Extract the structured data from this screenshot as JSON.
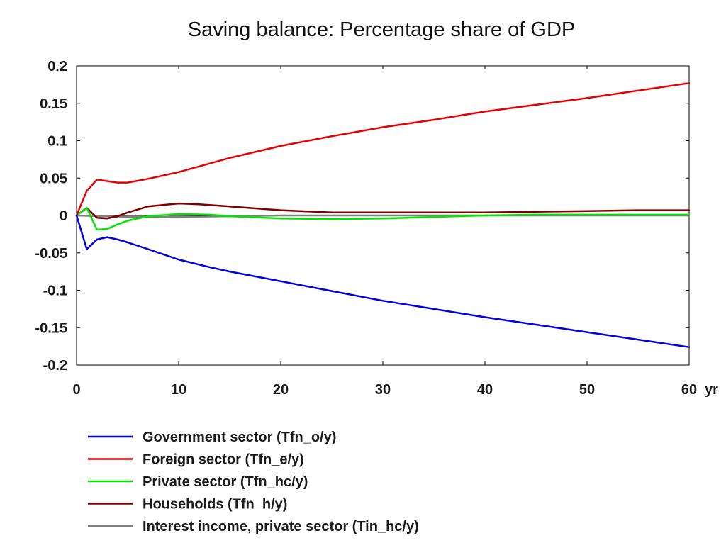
{
  "chart_data": {
    "type": "line",
    "title": "Saving balance: Percentage share of GDP",
    "xlabel": "",
    "ylabel": "",
    "x_unit_label": "yr",
    "xlim": [
      0,
      60
    ],
    "ylim": [
      -0.2,
      0.2
    ],
    "x_ticks": [
      "0",
      "10",
      "20",
      "30",
      "40",
      "50",
      "60"
    ],
    "y_ticks": [
      "0.2",
      "0.15",
      "0.1",
      "0.05",
      "0",
      "-0.05",
      "-0.1",
      "-0.15",
      "-0.2"
    ],
    "grid": false,
    "legend_position": "bottom",
    "series": [
      {
        "name": "Government sector (Tfn_o/y)",
        "color": "#0000e6",
        "points": [
          [
            0,
            0
          ],
          [
            1,
            -0.045
          ],
          [
            2,
            -0.032
          ],
          [
            3,
            -0.029
          ],
          [
            4,
            -0.032
          ],
          [
            5,
            -0.036
          ],
          [
            7,
            -0.045
          ],
          [
            10,
            -0.059
          ],
          [
            13,
            -0.069
          ],
          [
            15,
            -0.075
          ],
          [
            20,
            -0.088
          ],
          [
            25,
            -0.101
          ],
          [
            30,
            -0.114
          ],
          [
            35,
            -0.125
          ],
          [
            40,
            -0.136
          ],
          [
            45,
            -0.146
          ],
          [
            50,
            -0.156
          ],
          [
            55,
            -0.166
          ],
          [
            60,
            -0.176
          ]
        ]
      },
      {
        "name": "Foreign sector (Tfn_e/y)",
        "color": "#e60000",
        "points": [
          [
            0,
            0
          ],
          [
            1,
            0.033
          ],
          [
            2,
            0.048
          ],
          [
            3,
            0.046
          ],
          [
            4,
            0.044
          ],
          [
            5,
            0.044
          ],
          [
            7,
            0.049
          ],
          [
            10,
            0.058
          ],
          [
            15,
            0.077
          ],
          [
            20,
            0.093
          ],
          [
            25,
            0.106
          ],
          [
            30,
            0.118
          ],
          [
            35,
            0.128
          ],
          [
            40,
            0.139
          ],
          [
            45,
            0.148
          ],
          [
            50,
            0.157
          ],
          [
            55,
            0.167
          ],
          [
            60,
            0.177
          ]
        ]
      },
      {
        "name": "Private sector (Tfn_hc/y)",
        "color": "#00e600",
        "points": [
          [
            0,
            0
          ],
          [
            1,
            0.01
          ],
          [
            2,
            -0.019
          ],
          [
            3,
            -0.018
          ],
          [
            4,
            -0.012
          ],
          [
            5,
            -0.007
          ],
          [
            7,
            -0.001
          ],
          [
            10,
            0.002
          ],
          [
            13,
            0.001
          ],
          [
            15,
            -0.001
          ],
          [
            20,
            -0.004
          ],
          [
            25,
            -0.005
          ],
          [
            30,
            -0.004
          ],
          [
            35,
            -0.002
          ],
          [
            40,
            0
          ],
          [
            45,
            0.001
          ],
          [
            50,
            0.001
          ],
          [
            55,
            0.001
          ],
          [
            60,
            0.001
          ]
        ]
      },
      {
        "name": "Households (Tfn_h/y)",
        "color": "#800000",
        "points": [
          [
            0,
            0
          ],
          [
            1,
            0.01
          ],
          [
            2,
            -0.003
          ],
          [
            3,
            -0.004
          ],
          [
            4,
            -0.001
          ],
          [
            5,
            0.004
          ],
          [
            7,
            0.012
          ],
          [
            10,
            0.016
          ],
          [
            12,
            0.015
          ],
          [
            15,
            0.012
          ],
          [
            20,
            0.007
          ],
          [
            25,
            0.004
          ],
          [
            30,
            0.004
          ],
          [
            35,
            0.004
          ],
          [
            40,
            0.004
          ],
          [
            45,
            0.005
          ],
          [
            50,
            0.006
          ],
          [
            55,
            0.007
          ],
          [
            60,
            0.007
          ]
        ]
      },
      {
        "name": "Interest income, private sector (Tin_hc/y)",
        "color": "#808080",
        "points": [
          [
            0,
            0
          ],
          [
            5,
            -0.002
          ],
          [
            10,
            -0.002
          ],
          [
            20,
            0
          ],
          [
            30,
            0
          ],
          [
            40,
            0
          ],
          [
            50,
            0
          ],
          [
            60,
            0
          ]
        ]
      }
    ]
  }
}
